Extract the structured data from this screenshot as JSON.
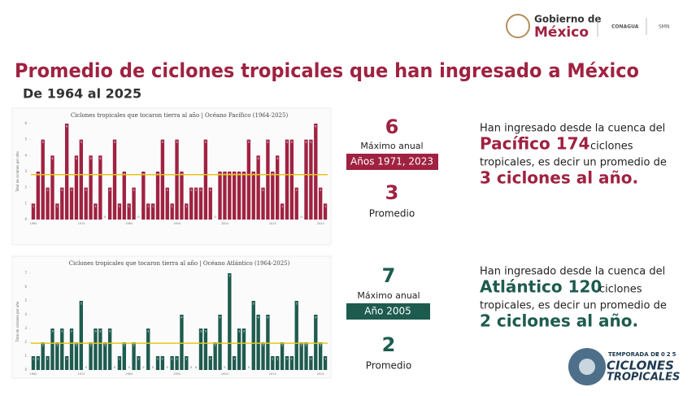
{
  "header": {
    "logo_main_top": "Gobierno de",
    "logo_main_bottom": "México",
    "logo_conagua": "CONAGUA",
    "logo_smn": "SMN"
  },
  "title": "Promedio de ciclones tropicales que han ingresado a México",
  "subtitle": "De 1964 al 2025",
  "chart_data": [
    {
      "type": "bar",
      "title": "Ciclones tropicales que tocaron tierra al año | Océano Pacífico (1964-2025)",
      "y_label": "Total de ciclones por año",
      "color": "#9f2241",
      "mean_line_color": "#e8c61a",
      "categories": [
        "1964",
        "1965",
        "1966",
        "1967",
        "1968",
        "1969",
        "1970",
        "1971",
        "1972",
        "1973",
        "1974",
        "1975",
        "1976",
        "1977",
        "1978",
        "1979",
        "1980",
        "1981",
        "1982",
        "1983",
        "1984",
        "1985",
        "1986",
        "1987",
        "1988",
        "1989",
        "1990",
        "1991",
        "1992",
        "1993",
        "1994",
        "1995",
        "1996",
        "1997",
        "1998",
        "1999",
        "2000",
        "2001",
        "2002",
        "2003",
        "2004",
        "2005",
        "2006",
        "2007",
        "2008",
        "2009",
        "2010",
        "2011",
        "2012",
        "2013",
        "2014",
        "2015",
        "2016",
        "2017",
        "2018",
        "2019",
        "2020",
        "2021",
        "2022",
        "2023",
        "2024",
        "2025"
      ],
      "values": [
        1,
        3,
        5,
        2,
        4,
        1,
        2,
        6,
        2,
        4,
        5,
        2,
        4,
        1,
        4,
        0,
        2,
        5,
        1,
        3,
        1,
        2,
        0,
        3,
        1,
        1,
        3,
        5,
        2,
        1,
        5,
        3,
        1,
        2,
        2,
        2,
        5,
        2,
        0,
        3,
        3,
        3,
        3,
        3,
        3,
        5,
        3,
        4,
        2,
        5,
        3,
        4,
        1,
        5,
        5,
        2,
        0,
        5,
        5,
        6,
        2,
        1
      ],
      "ylim": [
        0,
        6
      ],
      "yticks": [
        0,
        1,
        2,
        3,
        4,
        5,
        6
      ]
    },
    {
      "type": "bar",
      "title": "Ciclones tropicales que tocaron tierra al año | Océano Atlántico (1964-2025)",
      "y_label": "Total de ciclones por año",
      "color": "#1e5b4f",
      "mean_line_color": "#e8c61a",
      "categories": [
        "1964",
        "1965",
        "1966",
        "1967",
        "1968",
        "1969",
        "1970",
        "1971",
        "1972",
        "1973",
        "1974",
        "1975",
        "1976",
        "1977",
        "1978",
        "1979",
        "1980",
        "1981",
        "1982",
        "1983",
        "1984",
        "1985",
        "1986",
        "1987",
        "1988",
        "1989",
        "1990",
        "1991",
        "1992",
        "1993",
        "1994",
        "1995",
        "1996",
        "1997",
        "1998",
        "1999",
        "2000",
        "2001",
        "2002",
        "2003",
        "2004",
        "2005",
        "2006",
        "2007",
        "2008",
        "2009",
        "2010",
        "2011",
        "2012",
        "2013",
        "2014",
        "2015",
        "2016",
        "2017",
        "2018",
        "2019",
        "2020",
        "2021",
        "2022",
        "2023",
        "2024",
        "2025"
      ],
      "values": [
        1,
        1,
        2,
        1,
        3,
        2,
        3,
        1,
        3,
        2,
        5,
        0,
        2,
        3,
        3,
        2,
        3,
        0,
        1,
        2,
        0,
        2,
        1,
        0,
        3,
        0,
        1,
        1,
        0,
        1,
        1,
        4,
        1,
        0,
        0,
        3,
        3,
        1,
        2,
        4,
        0,
        7,
        1,
        3,
        3,
        0,
        5,
        4,
        2,
        4,
        1,
        1,
        2,
        1,
        1,
        5,
        2,
        2,
        1,
        4,
        2,
        1
      ],
      "ylim": [
        0,
        7
      ],
      "yticks": [
        0,
        1,
        2,
        3,
        4,
        5,
        6,
        7
      ]
    }
  ],
  "stats": [
    {
      "max": "6",
      "max_label": "Máximo anual",
      "years": "Años 1971, 2023",
      "avg": "3",
      "avg_label": "Promedio"
    },
    {
      "max": "7",
      "max_label": "Máximo anual",
      "years": "Año 2005",
      "avg": "2",
      "avg_label": "Promedio"
    }
  ],
  "texts": [
    {
      "line1": "Han ingresado desde la cuenca del",
      "big": "Pacífico 174",
      "after": "ciclones",
      "line3": "tropicales, es decir un promedio de",
      "line4": "3 ciclones al año."
    },
    {
      "line1": "Han ingresado desde la cuenca del",
      "big": "Atlántico 120",
      "after": "ciclones",
      "line3": "tropicales, es decir un promedio de",
      "line4": "2 ciclones al año."
    }
  ],
  "badge": {
    "top": "TEMPORADA DE",
    "year": "2025",
    "line1": "CICLONES",
    "line2": "TROPICALES"
  }
}
